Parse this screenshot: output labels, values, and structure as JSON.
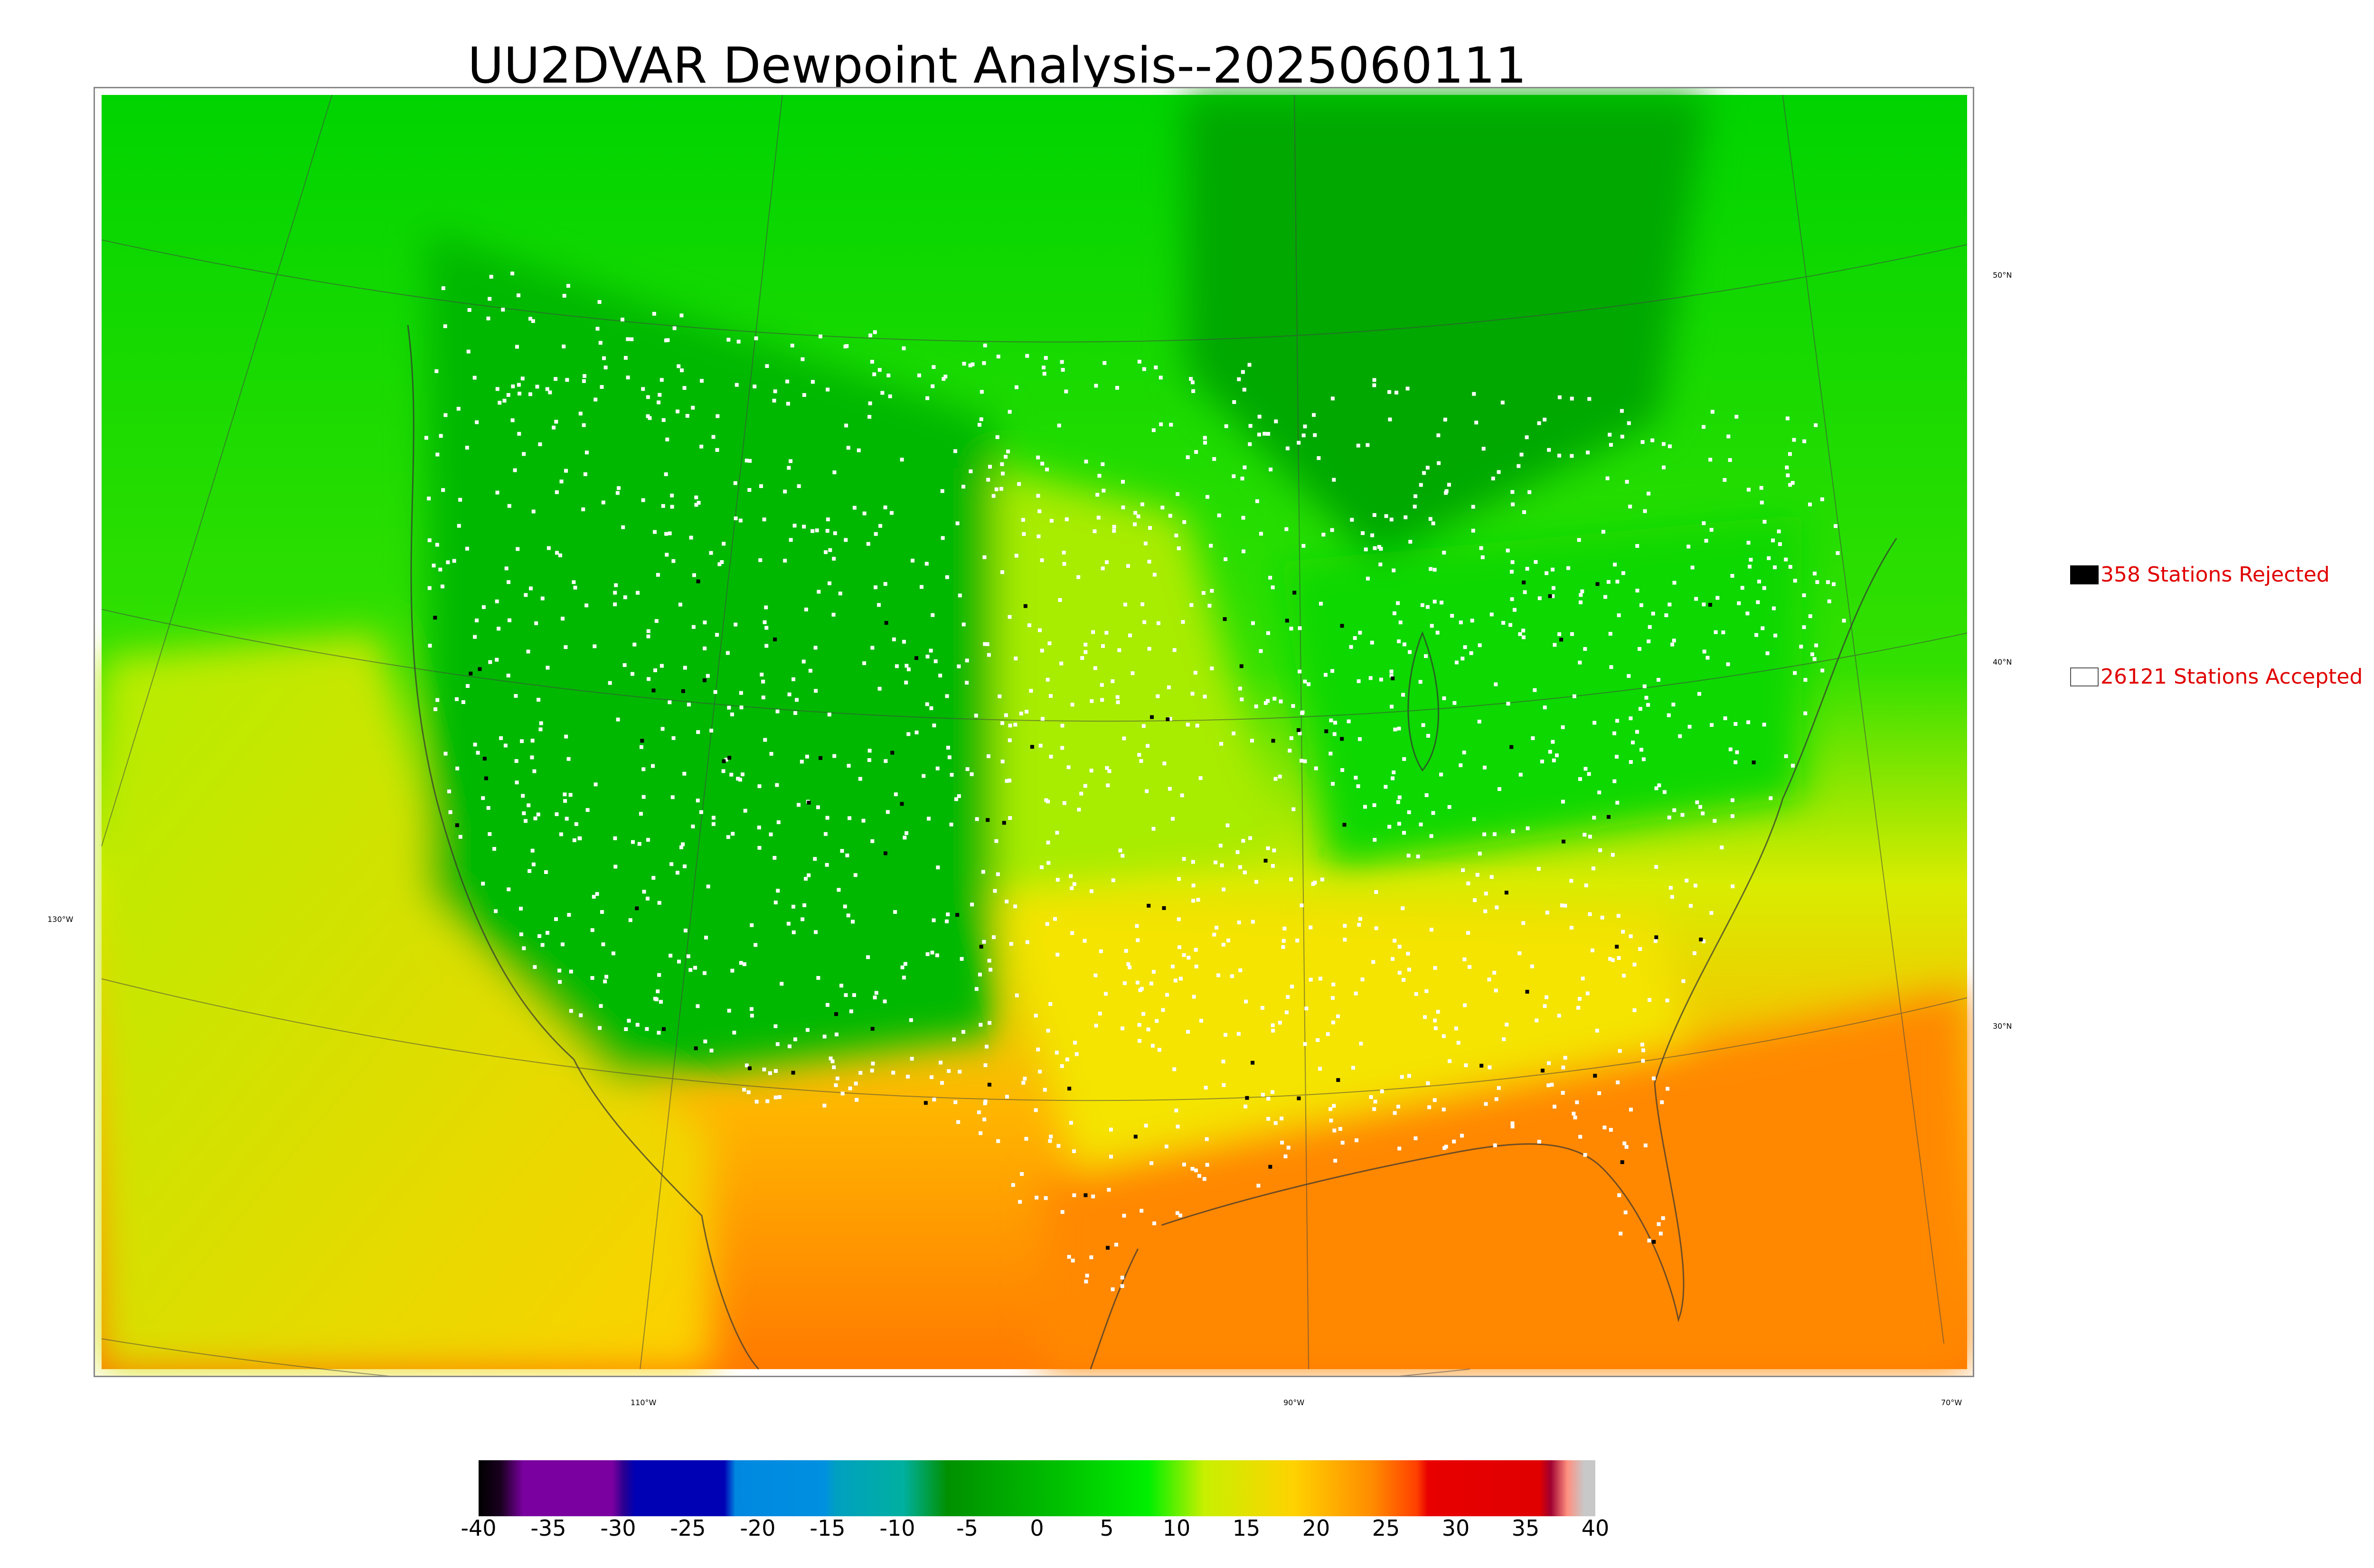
{
  "title": "UU2DVAR Dewpoint Analysis--2025060111",
  "legend": {
    "rejected": {
      "label": "358 Stations Rejected",
      "swatch_color": "#000000"
    },
    "accepted": {
      "label": "26121 Stations Accepted",
      "swatch_color": "#ffffff"
    }
  },
  "graticule": {
    "lat_labels": [
      "50°N",
      "40°N",
      "30°N"
    ],
    "lon_labels": [
      "130°W",
      "110°W",
      "90°W",
      "70°W"
    ]
  },
  "colorbar": {
    "ticks": [
      "-40",
      "-35",
      "-30",
      "-25",
      "-20",
      "-15",
      "-10",
      "-5",
      "0",
      "5",
      "10",
      "15",
      "20",
      "25",
      "30",
      "35",
      "40"
    ],
    "range": [
      -40,
      40
    ],
    "colors": [
      "#000000",
      "#7a00a0",
      "#0000b4",
      "#0090e0",
      "#00b0a0",
      "#009000",
      "#00f000",
      "#c8f000",
      "#ffd200",
      "#ff8c00",
      "#ff0000",
      "#a00000",
      "#c8c8c8"
    ]
  },
  "chart_data": {
    "type": "heatmap",
    "title": "UU2DVAR Dewpoint Analysis--2025060111",
    "colorbar_range": [
      -40,
      40
    ],
    "colorbar_ticks": [
      -40,
      -35,
      -30,
      -25,
      -20,
      -15,
      -10,
      -5,
      0,
      5,
      10,
      15,
      20,
      25,
      30,
      35,
      40
    ],
    "stations_rejected": 358,
    "stations_accepted": 26121
  }
}
